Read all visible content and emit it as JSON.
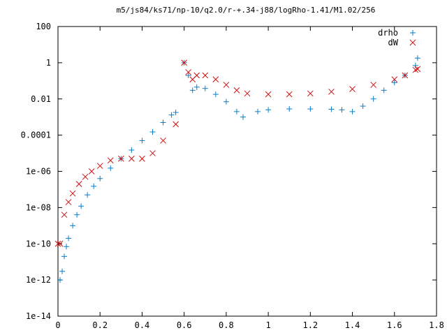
{
  "chart_data": {
    "type": "scatter",
    "title": "m5/js84/ks71/np-10/q2.0/r-+.34-j88/logRho-1.41/M1.02/256",
    "xlabel": "",
    "ylabel": "",
    "xlim": [
      0,
      1.8
    ],
    "ylim": [
      1e-14,
      100
    ],
    "y_scale": "log",
    "grid": false,
    "legend_position": "top-right",
    "x_ticks": [
      "0",
      "0.2",
      "0.4",
      "0.6",
      "0.8",
      "1",
      "1.2",
      "1.4",
      "1.6",
      "1.8"
    ],
    "y_ticks": [
      "100",
      "1",
      "0.01",
      "0.0001",
      "1e-06",
      "1e-08",
      "1e-10",
      "1e-12",
      "1e-14"
    ],
    "series": [
      {
        "name": "drho",
        "marker": "plus",
        "color": "#0a7dc8",
        "x": [
          0.01,
          0.02,
          0.03,
          0.04,
          0.05,
          0.07,
          0.09,
          0.11,
          0.14,
          0.17,
          0.2,
          0.25,
          0.3,
          0.35,
          0.4,
          0.45,
          0.5,
          0.54,
          0.56,
          0.6,
          0.62,
          0.64,
          0.66,
          0.7,
          0.75,
          0.8,
          0.85,
          0.88,
          0.95,
          1.0,
          1.1,
          1.2,
          1.3,
          1.35,
          1.4,
          1.45,
          1.5,
          1.55,
          1.6,
          1.65,
          1.7,
          1.71
        ],
        "y": [
          1e-12,
          3e-12,
          2e-11,
          7e-11,
          2e-10,
          1e-09,
          4e-09,
          1.2e-08,
          5e-08,
          1.5e-07,
          4e-07,
          1.5e-06,
          5e-06,
          1.5e-05,
          5e-05,
          0.00015,
          0.0005,
          0.0013,
          0.0018,
          1.0,
          0.2,
          0.03,
          0.045,
          0.038,
          0.018,
          0.007,
          0.002,
          0.001,
          0.002,
          0.0025,
          0.0028,
          0.0028,
          0.0027,
          0.0025,
          0.002,
          0.004,
          0.01,
          0.03,
          0.08,
          0.2,
          0.7,
          1.8
        ]
      },
      {
        "name": "dW",
        "marker": "x",
        "color": "#d01010",
        "x": [
          0.0,
          0.01,
          0.03,
          0.05,
          0.07,
          0.1,
          0.13,
          0.16,
          0.2,
          0.25,
          0.3,
          0.35,
          0.4,
          0.45,
          0.5,
          0.56,
          0.6,
          0.62,
          0.64,
          0.66,
          0.7,
          0.75,
          0.8,
          0.85,
          0.9,
          1.0,
          1.1,
          1.2,
          1.3,
          1.4,
          1.5,
          1.6,
          1.65,
          1.7,
          1.71
        ],
        "y": [
          1e-10,
          1e-10,
          4e-09,
          2e-08,
          6e-08,
          2e-07,
          5e-07,
          1e-06,
          2e-06,
          4e-06,
          5e-06,
          5e-06,
          5e-06,
          1e-05,
          5e-05,
          0.0004,
          1.0,
          0.3,
          0.12,
          0.2,
          0.2,
          0.12,
          0.06,
          0.03,
          0.02,
          0.018,
          0.018,
          0.02,
          0.025,
          0.035,
          0.06,
          0.12,
          0.2,
          0.4,
          0.45
        ]
      }
    ]
  }
}
